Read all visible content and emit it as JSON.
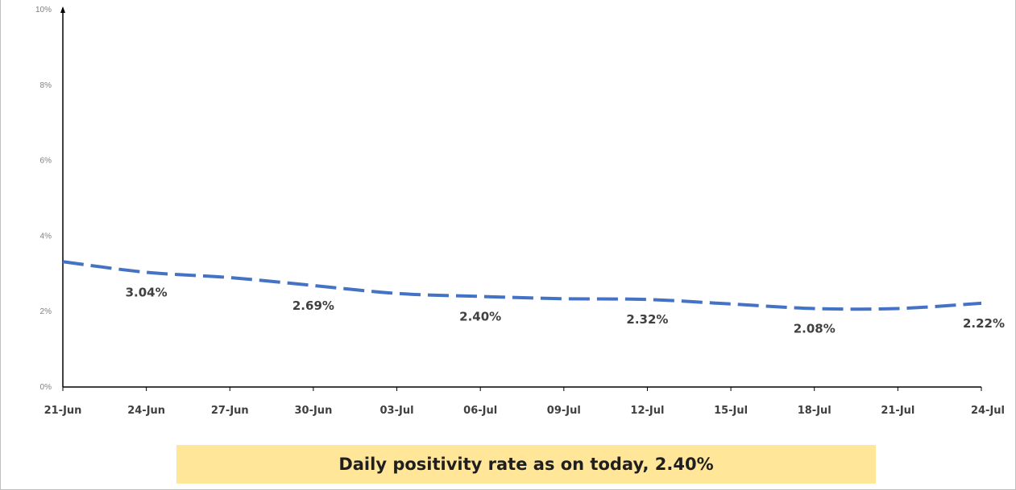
{
  "chart_data": {
    "type": "line",
    "title": "",
    "xlabel": "",
    "ylabel": "",
    "yticks": [
      "10%",
      "8%",
      "6%",
      "4%",
      "2%",
      "0%"
    ],
    "ylim": [
      0,
      10
    ],
    "grid": false,
    "categories": [
      "21-Jun",
      "24-Jun",
      "27-Jun",
      "30-Jun",
      "03-Jul",
      "06-Jul",
      "09-Jul",
      "12-Jul",
      "15-Jul",
      "18-Jul",
      "21-Jul",
      "24-Jul"
    ],
    "series": [
      {
        "name": "",
        "color": "#4472c4",
        "line_style": "dashed",
        "values": [
          3.32,
          3.04,
          2.9,
          2.69,
          2.48,
          2.4,
          2.34,
          2.32,
          2.2,
          2.08,
          2.08,
          2.22
        ]
      }
    ],
    "data_labels": [
      {
        "category": "24-Jun",
        "text": "3.04%"
      },
      {
        "category": "30-Jun",
        "text": "2.69%"
      },
      {
        "category": "06-Jul",
        "text": "2.40%"
      },
      {
        "category": "12-Jul",
        "text": "2.32%"
      },
      {
        "category": "18-Jul",
        "text": "2.08%"
      },
      {
        "category": "24-Jul",
        "text": "2.22%"
      }
    ]
  },
  "banner": {
    "text": "Daily positivity rate as on today, 2.40%",
    "background": "#ffe699"
  }
}
